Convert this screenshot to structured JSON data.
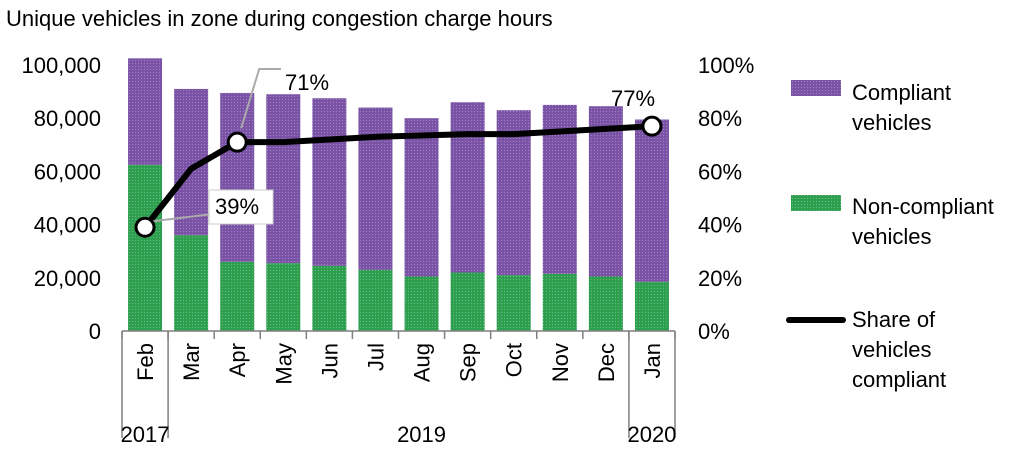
{
  "chart_data": {
    "type": "bar",
    "title": "Unique vehicles in zone during congestion charge hours",
    "categories": [
      "Feb",
      "Mar",
      "Apr",
      "May",
      "Jun",
      "Jul",
      "Aug",
      "Sep",
      "Oct",
      "Nov",
      "Dec",
      "Jan"
    ],
    "year_labels": [
      {
        "label": "2017",
        "category": "Feb"
      },
      {
        "label": "2019",
        "category": "Aug"
      },
      {
        "label": "2020",
        "category": "Jan"
      }
    ],
    "stacked": true,
    "series": [
      {
        "name": "Non-compliant vehicles",
        "type": "bar",
        "axis": "left",
        "color": "#2e9e4f",
        "values": [
          62500,
          36000,
          26000,
          25500,
          24500,
          23000,
          20500,
          22000,
          21000,
          21500,
          20500,
          18500
        ]
      },
      {
        "name": "Compliant vehicles",
        "type": "bar",
        "axis": "left",
        "color": "#7a52a6",
        "values": [
          40000,
          55000,
          63500,
          63500,
          63000,
          61000,
          59500,
          64000,
          62000,
          63500,
          64000,
          61000
        ]
      },
      {
        "name": "Share of vehicles compliant",
        "type": "line",
        "axis": "right",
        "color": "#000000",
        "values": [
          39,
          61,
          71,
          71,
          72,
          73,
          73.5,
          74,
          74,
          75,
          76,
          77
        ]
      }
    ],
    "markers": [
      {
        "category": "Feb",
        "label": "39%"
      },
      {
        "category": "Apr",
        "label": "71%"
      },
      {
        "category": "Jan",
        "label": "77%"
      }
    ],
    "y_left": {
      "min": 0,
      "max": 100000,
      "ticks": [
        "0",
        "20,000",
        "40,000",
        "60,000",
        "80,000",
        "100,000"
      ]
    },
    "y_right": {
      "min": 0,
      "max": 100,
      "ticks": [
        "0%",
        "20%",
        "40%",
        "60%",
        "80%",
        "100%"
      ]
    },
    "legend": {
      "placement": "right",
      "items": [
        {
          "lines": [
            "Compliant",
            "vehicles"
          ],
          "swatch": "box",
          "color": "#7a52a6"
        },
        {
          "lines": [
            "Non-compliant",
            "vehicles"
          ],
          "swatch": "box",
          "color": "#2e9e4f"
        },
        {
          "lines": [
            "Share of",
            "vehicles",
            "compliant"
          ],
          "swatch": "line",
          "color": "#000000"
        }
      ]
    },
    "grid": false
  }
}
